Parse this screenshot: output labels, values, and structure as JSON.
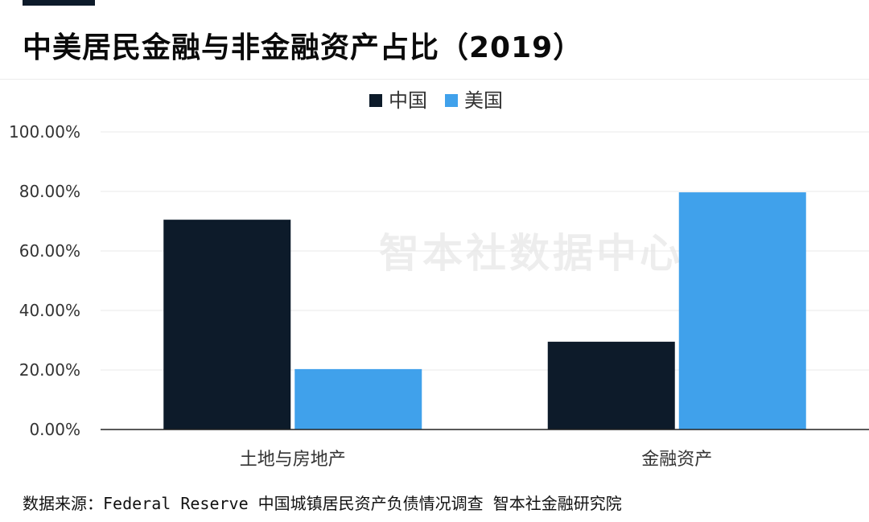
{
  "title": "中美居民金融与非金融资产占比（2019）",
  "watermark": "智本社数据中心",
  "source": "数据来源：Federal Reserve 中国城镇居民资产负债情况调查 智本社金融研究院",
  "colors": {
    "china": "#0d1b2a",
    "usa": "#40a1eb"
  },
  "chart_data": {
    "type": "bar",
    "title": "中美居民金融与非金融资产占比（2019）",
    "categories": [
      "土地与房地产",
      "金融资产"
    ],
    "series": [
      {
        "name": "中国",
        "values": [
          70.5,
          29.5
        ],
        "color": "#0d1b2a"
      },
      {
        "name": "美国",
        "values": [
          20.3,
          79.7
        ],
        "color": "#40a1eb"
      }
    ],
    "yticks": [
      "0.00%",
      "20.00%",
      "40.00%",
      "60.00%",
      "80.00%",
      "100.00%"
    ],
    "ylim": [
      0,
      100
    ],
    "grid": true,
    "legend_position": "top-center"
  }
}
